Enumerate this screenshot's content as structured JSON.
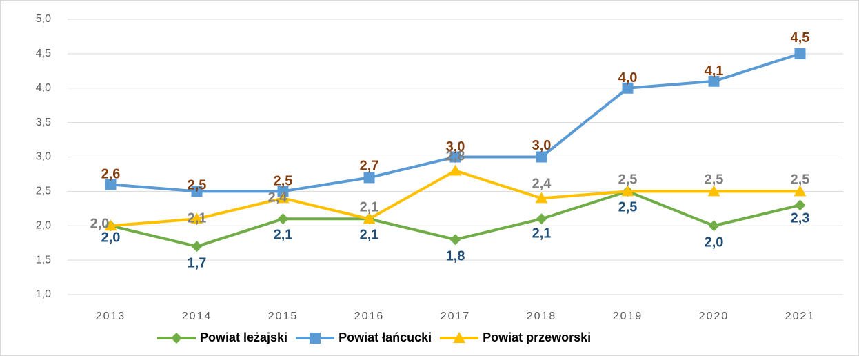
{
  "chart_data": {
    "type": "line",
    "categories": [
      "2013",
      "2014",
      "2015",
      "2016",
      "2017",
      "2018",
      "2019",
      "2020",
      "2021"
    ],
    "series": [
      {
        "name": "Powiat leżajski",
        "color": "#70ad47",
        "marker": "diamond",
        "label_color": "#1f4e79",
        "values": [
          2.0,
          1.7,
          2.1,
          2.1,
          1.8,
          2.1,
          2.5,
          2.0,
          2.3
        ],
        "value_labels": [
          "2,0",
          "1,7",
          "2,1",
          "2,1",
          "1,8",
          "2,1",
          "2,5",
          "2,0",
          "2,3"
        ]
      },
      {
        "name": "Powiat łańcucki",
        "color": "#5b9bd5",
        "marker": "square",
        "label_color": "#843c0c",
        "values": [
          2.6,
          2.5,
          2.5,
          2.7,
          3.0,
          3.0,
          4.0,
          4.1,
          4.5
        ],
        "value_labels": [
          "2,6",
          "2,5",
          "2,5",
          "2,7",
          "3,0",
          "3,0",
          "4,0",
          "4,1",
          "4,5"
        ]
      },
      {
        "name": "Powiat przeworski",
        "color": "#ffc000",
        "marker": "triangle",
        "label_color": "#7f7f7f",
        "values": [
          2.0,
          2.1,
          2.4,
          2.1,
          2.8,
          2.4,
          2.5,
          2.5,
          2.5
        ],
        "value_labels": [
          "2,0",
          "2,1",
          "2,4",
          "2,1",
          "2,8",
          "2,4",
          "2,5",
          "2,5",
          "2,5"
        ]
      }
    ],
    "ylim": [
      1,
      5
    ],
    "yticks": [
      {
        "value": 1,
        "label": "1,0"
      },
      {
        "value": 1.5,
        "label": "1,5"
      },
      {
        "value": 2,
        "label": "2,0"
      },
      {
        "value": 2.5,
        "label": "2,5"
      },
      {
        "value": 3,
        "label": "3,0"
      },
      {
        "value": 3.5,
        "label": "3,5"
      },
      {
        "value": 4,
        "label": "4,0"
      },
      {
        "value": 4.5,
        "label": "4,5"
      },
      {
        "value": 5,
        "label": "5,0"
      }
    ],
    "grid": true,
    "legend": "bottom"
  }
}
